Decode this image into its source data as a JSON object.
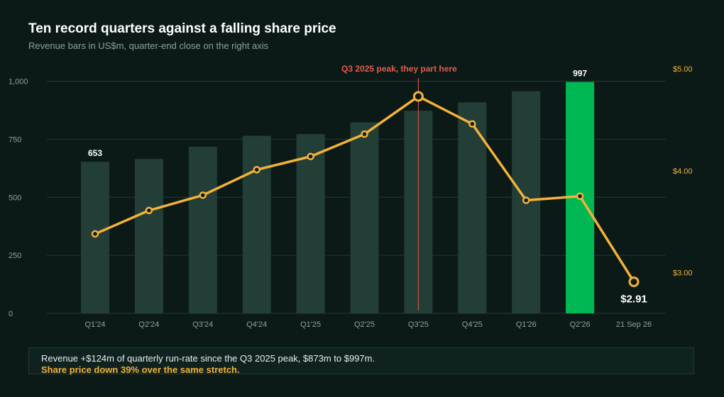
{
  "header": {
    "title": "Ten record quarters against a falling share price",
    "subtitle": "Revenue bars in US$m, quarter-end close on the right axis"
  },
  "chart_data": {
    "type": "bar",
    "categories": [
      "Q1'24",
      "Q2'24",
      "Q3'24",
      "Q4'24",
      "Q1'25",
      "Q2'25",
      "Q3'25",
      "Q4'25",
      "Q1'26",
      "Q2'26",
      "21 Sep 26"
    ],
    "bar_values": [
      653,
      665,
      718,
      765,
      772,
      823,
      873,
      909,
      957,
      997
    ],
    "bar_value_labels": [
      {
        "category": "Q1'24",
        "text": "653"
      },
      {
        "category": "Q2'26",
        "text": "997"
      }
    ],
    "line_values": [
      3.38,
      3.61,
      3.76,
      4.01,
      4.14,
      4.36,
      4.73,
      4.46,
      3.71,
      3.75,
      2.91
    ],
    "line_end_label": "$2.91",
    "left_axis": {
      "ticks": [
        0,
        250,
        500,
        750,
        1000
      ],
      "tick_labels": [
        "0",
        "250",
        "500",
        "750",
        "1,000"
      ],
      "range": [
        0,
        1075
      ]
    },
    "right_axis": {
      "ticks": [
        3.0,
        4.0,
        5.0
      ],
      "tick_labels": [
        "$3.00",
        "$4.00",
        "$5.00"
      ],
      "range": [
        2.6,
        5.05
      ]
    },
    "annotation": {
      "category": "Q3'25",
      "text": "Q3 2025 peak, they part here"
    },
    "highlight_category": "Q2'26",
    "grid": "horizontal",
    "colors": {
      "bar": "#233e37",
      "bar_highlight": "#00b853",
      "line": "#f3b23a",
      "annotation": "#e55a4e",
      "grid": "#22382f",
      "tick": "#8ba39b"
    }
  },
  "note": {
    "line1": "Revenue +$124m of quarterly run-rate since the Q3 2025 peak, $873m to $997m.",
    "line2": "Share price down 39% over the same stretch."
  }
}
